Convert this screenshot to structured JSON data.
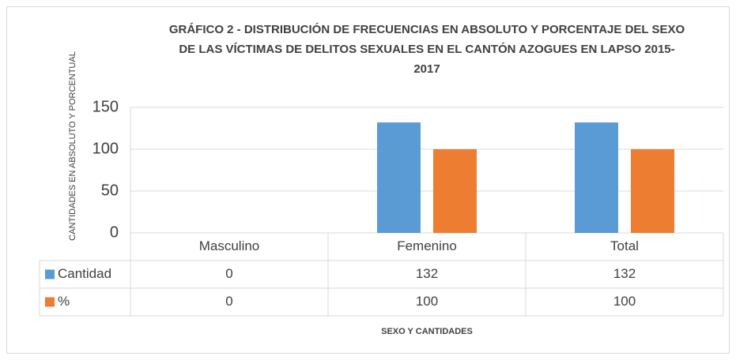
{
  "chart_data": {
    "type": "bar",
    "title": [
      "GRÁFICO 2 - DISTRIBUCIÓN DE FRECUENCIAS EN ABSOLUTO Y PORCENTAJE DEL SEXO",
      "DE LAS VÍCTIMAS DE DELITOS SEXUALES EN EL CANTÓN AZOGUES EN LAPSO 2015-",
      "2017"
    ],
    "xlabel": "SEXO Y CANTIDADES",
    "ylabel": "CANTIDADES EN ABSOLUTO Y PORCENTUAL",
    "categories": [
      "Masculino",
      "Femenino",
      "Total"
    ],
    "series": [
      {
        "name": "Cantidad",
        "color": "#5b9bd5",
        "values": [
          0,
          132,
          132
        ]
      },
      {
        "name": "%",
        "color": "#ed7d31",
        "values": [
          0,
          100,
          100
        ]
      }
    ],
    "ylim": [
      0,
      150
    ],
    "yticks": [
      0,
      50,
      100,
      150
    ],
    "grid": true
  }
}
